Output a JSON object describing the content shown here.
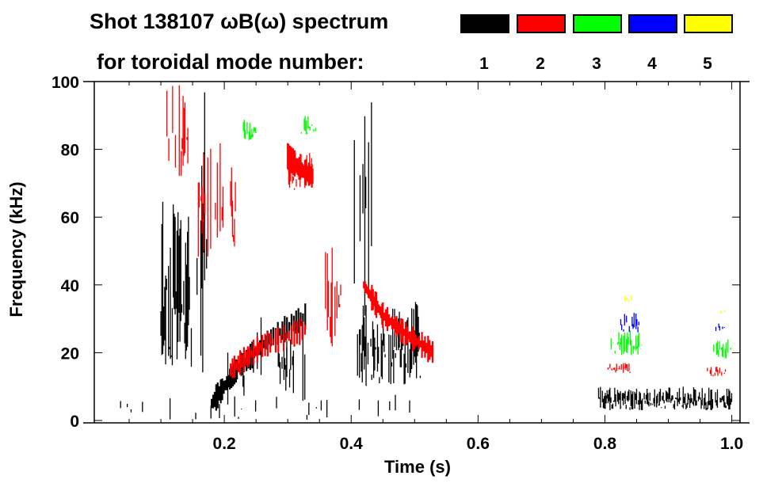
{
  "chart_data": {
    "type": "heatmap",
    "title": "Shot 138107 ωB(ω) spectrum",
    "subtitle": "for toroidal mode number:",
    "xlabel": "Time (s)",
    "ylabel": "Frequency (kHz)",
    "xlim": [
      -0.005,
      1.013
    ],
    "ylim": [
      0,
      100
    ],
    "xticks": [
      "0.2",
      "0.4",
      "0.6",
      "0.8",
      "1.0"
    ],
    "xtick_values": [
      0.2,
      0.4,
      0.6,
      0.8,
      1.0
    ],
    "yticks": [
      "0",
      "20",
      "40",
      "60",
      "80",
      "100"
    ],
    "ytick_values": [
      0,
      20,
      40,
      60,
      80,
      100
    ],
    "legend": [
      {
        "label": "1",
        "color": "#000000"
      },
      {
        "label": "2",
        "color": "#ff0000"
      },
      {
        "label": "3",
        "color": "#00ff00"
      },
      {
        "label": "4",
        "color": "#0000ff"
      },
      {
        "label": "5",
        "color": "#ffff00"
      }
    ],
    "legend_placement": "top-right",
    "regions": [
      {
        "mode": 1,
        "t": [
          0.1,
          0.145
        ],
        "f": [
          15,
          65
        ],
        "density": 0.9
      },
      {
        "mode": 1,
        "t": [
          0.145,
          0.18
        ],
        "f": [
          3,
          100
        ],
        "density": 0.35
      },
      {
        "mode": 1,
        "t": [
          0.18,
          0.33
        ],
        "f": [
          3,
          32
        ],
        "density": 0.15
      },
      {
        "mode": 1,
        "t": [
          0.285,
          0.31
        ],
        "f": [
          8,
          25
        ],
        "density": 0.8
      },
      {
        "mode": 1,
        "t": [
          0.405,
          0.44
        ],
        "f": [
          30,
          100
        ],
        "density": 0.3
      },
      {
        "mode": 1,
        "t": [
          0.41,
          0.51
        ],
        "f": [
          10,
          35
        ],
        "density": 0.8
      },
      {
        "mode": 1,
        "t": [
          0.79,
          1.0
        ],
        "f": [
          3,
          10
        ],
        "density": 0.95
      },
      {
        "mode": 1,
        "t": [
          0.02,
          0.5
        ],
        "f": [
          0,
          8
        ],
        "density": 0.08
      },
      {
        "mode": 2,
        "t": [
          0.105,
          0.15
        ],
        "f": [
          72,
          100
        ],
        "density": 0.5
      },
      {
        "mode": 2,
        "t": [
          0.15,
          0.22
        ],
        "f": [
          48,
          82
        ],
        "density": 0.4
      },
      {
        "mode": 2,
        "t": [
          0.3,
          0.34
        ],
        "f": [
          68,
          79
        ],
        "density": 0.7
      },
      {
        "mode": 2,
        "t": [
          0.355,
          0.385
        ],
        "f": [
          20,
          55
        ],
        "density": 0.6
      },
      {
        "mode": 2,
        "t": [
          0.805,
          0.84
        ],
        "f": [
          14,
          17
        ],
        "density": 0.8
      },
      {
        "mode": 2,
        "t": [
          0.96,
          0.99
        ],
        "f": [
          13,
          16
        ],
        "density": 0.6
      },
      {
        "mode": 3,
        "t": [
          0.23,
          0.25
        ],
        "f": [
          82,
          89
        ],
        "density": 0.8
      },
      {
        "mode": 3,
        "t": [
          0.32,
          0.345
        ],
        "f": [
          84,
          90
        ],
        "density": 0.5
      },
      {
        "mode": 3,
        "t": [
          0.81,
          0.86
        ],
        "f": [
          19,
          27
        ],
        "density": 0.7
      },
      {
        "mode": 3,
        "t": [
          0.97,
          1.0
        ],
        "f": [
          18,
          24
        ],
        "density": 0.6
      },
      {
        "mode": 4,
        "t": [
          0.825,
          0.855
        ],
        "f": [
          26,
          32
        ],
        "density": 0.4
      },
      {
        "mode": 4,
        "t": [
          0.975,
          0.99
        ],
        "f": [
          26,
          29
        ],
        "density": 0.4
      },
      {
        "mode": 5,
        "t": [
          0.83,
          0.845
        ],
        "f": [
          35,
          37
        ],
        "density": 0.4
      },
      {
        "mode": 5,
        "t": [
          0.98,
          0.99
        ],
        "f": [
          31,
          33
        ],
        "density": 0.4
      }
    ],
    "chirps": [
      {
        "mode": 1,
        "points": [
          [
            0.18,
            5
          ],
          [
            0.22,
            15
          ],
          [
            0.27,
            24
          ],
          [
            0.33,
            31
          ]
        ]
      },
      {
        "mode": 2,
        "points": [
          [
            0.21,
            15
          ],
          [
            0.26,
            22
          ],
          [
            0.33,
            27
          ]
        ]
      },
      {
        "mode": 2,
        "points": [
          [
            0.42,
            40
          ],
          [
            0.45,
            31
          ],
          [
            0.49,
            25
          ],
          [
            0.53,
            20
          ]
        ]
      },
      {
        "mode": 2,
        "points": [
          [
            0.3,
            78
          ],
          [
            0.32,
            74
          ],
          [
            0.34,
            72
          ]
        ]
      }
    ]
  }
}
